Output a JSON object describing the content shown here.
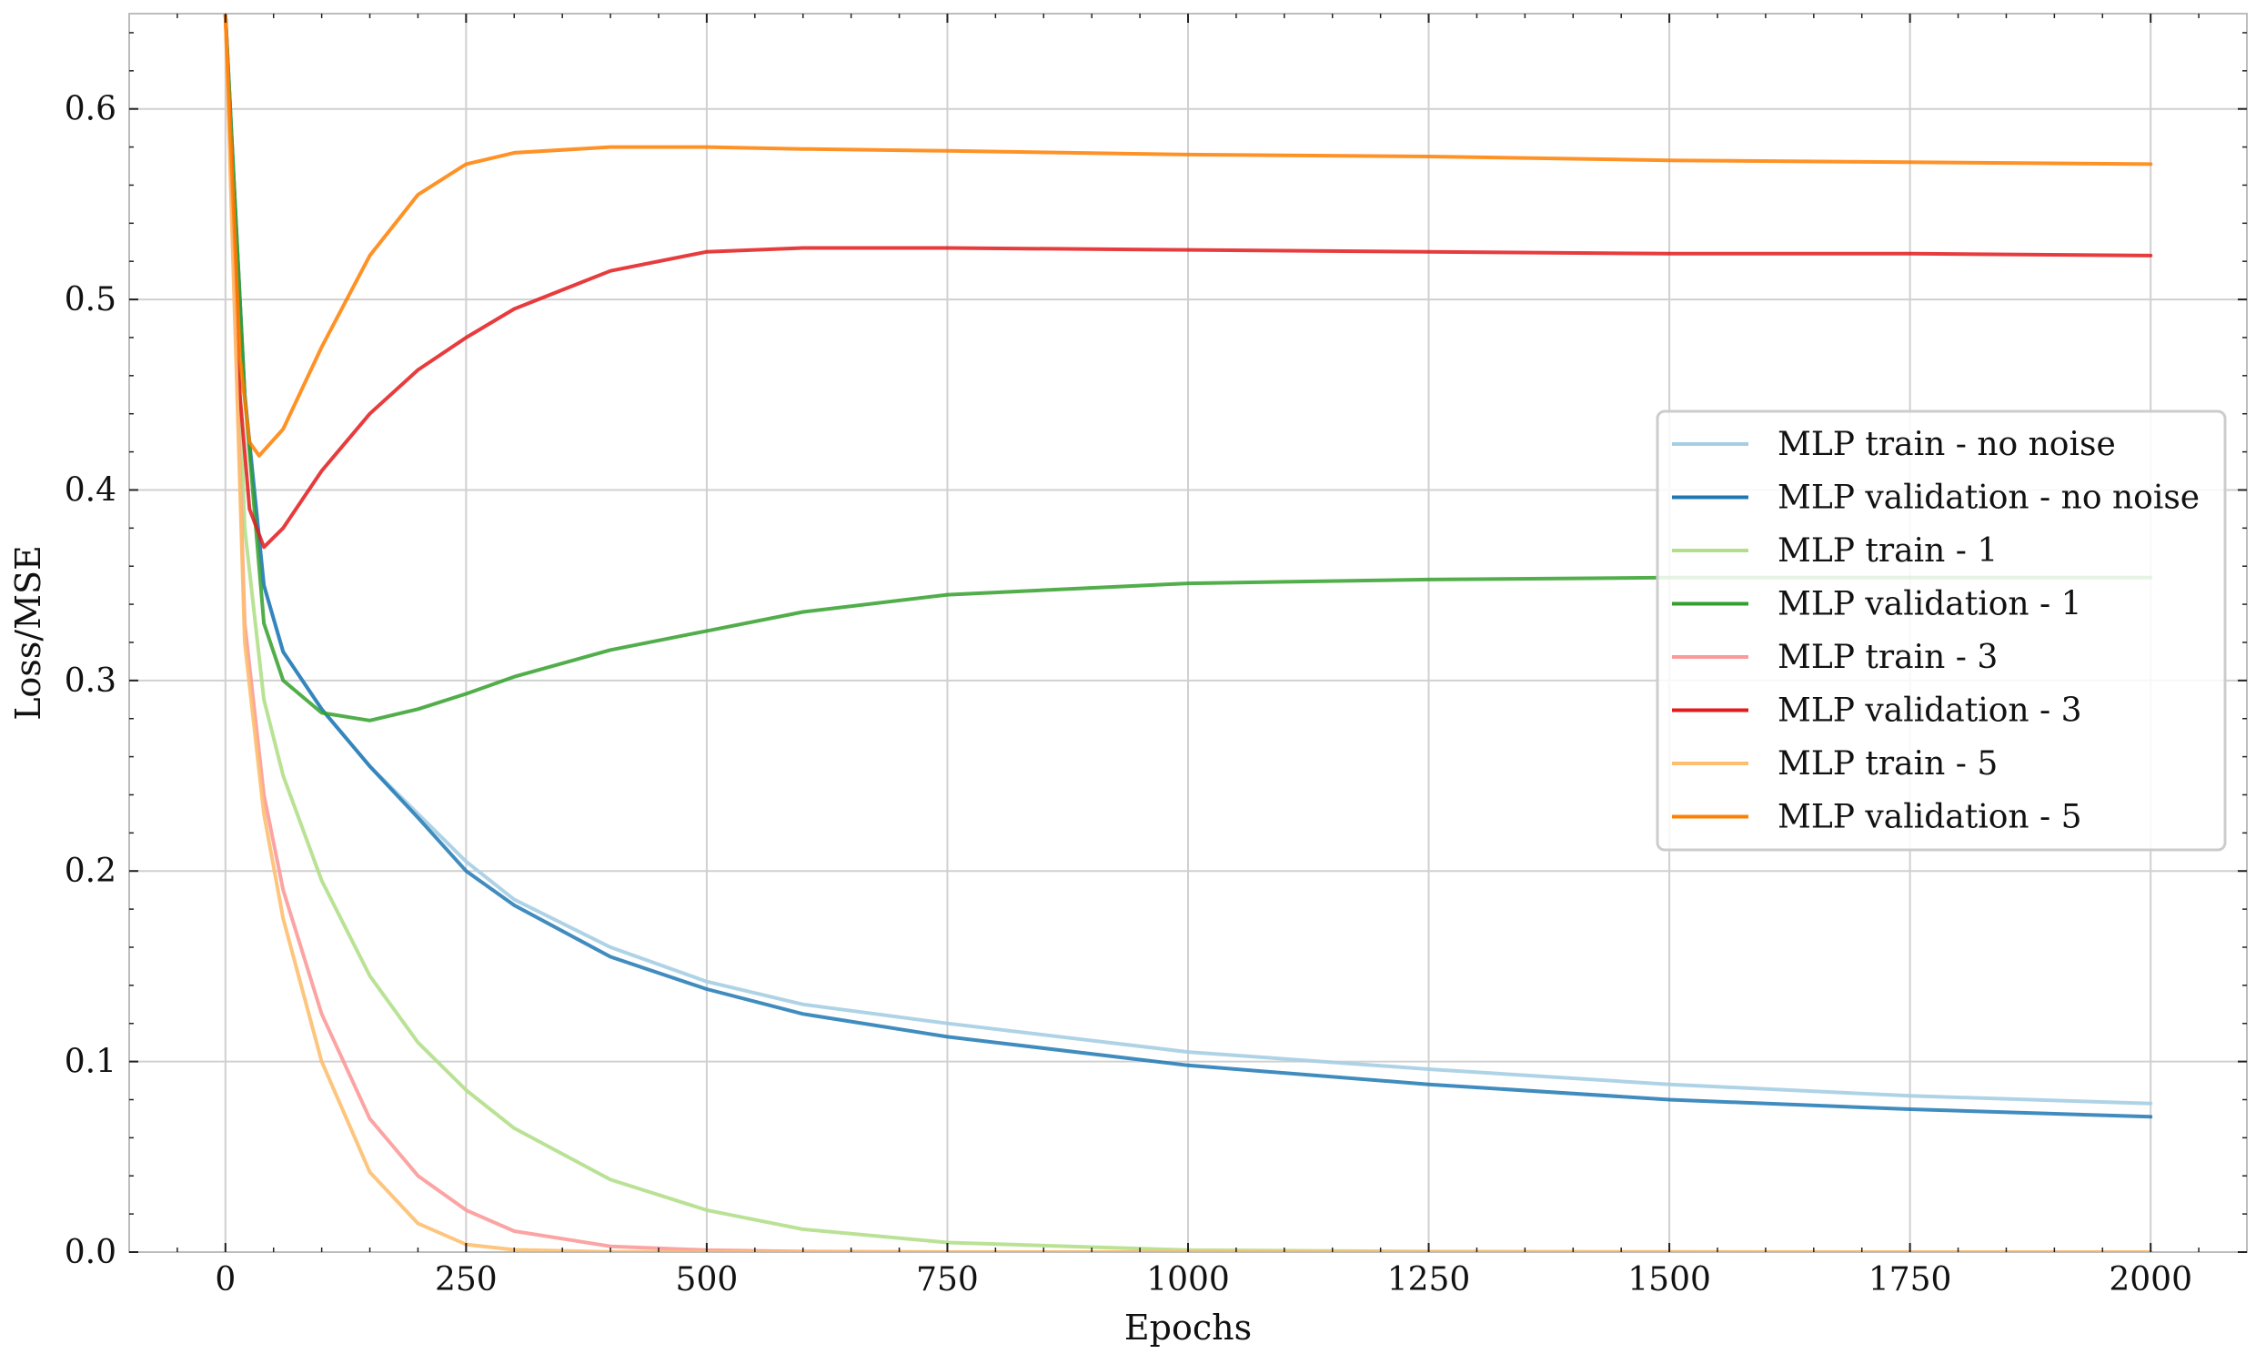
{
  "chart_data": {
    "type": "line",
    "xlabel": "Epochs",
    "ylabel": "Loss/MSE",
    "xlim": [
      -100,
      2100
    ],
    "ylim": [
      0.0,
      0.65
    ],
    "xticks": [
      0,
      250,
      500,
      750,
      1000,
      1250,
      1500,
      1750,
      2000
    ],
    "xtick_labels": [
      "0",
      "250",
      "500",
      "750",
      "1000",
      "1250",
      "1500",
      "1750",
      "2000"
    ],
    "yticks": [
      0.0,
      0.1,
      0.2,
      0.3,
      0.4,
      0.5,
      0.6
    ],
    "ytick_labels": [
      "0.0",
      "0.1",
      "0.2",
      "0.3",
      "0.4",
      "0.5",
      "0.6"
    ],
    "grid": true,
    "legend_position": "center-right",
    "series": [
      {
        "name": "MLP train - no noise",
        "color": "#a6cee3",
        "x": [
          0,
          20,
          40,
          60,
          100,
          150,
          200,
          250,
          300,
          400,
          500,
          600,
          750,
          1000,
          1250,
          1500,
          1750,
          2000
        ],
        "y": [
          0.65,
          0.45,
          0.35,
          0.315,
          0.285,
          0.255,
          0.23,
          0.205,
          0.185,
          0.16,
          0.142,
          0.13,
          0.12,
          0.105,
          0.096,
          0.088,
          0.082,
          0.078
        ]
      },
      {
        "name": "MLP validation - no noise",
        "color": "#1f78b4",
        "x": [
          0,
          20,
          40,
          60,
          100,
          150,
          200,
          250,
          300,
          400,
          500,
          600,
          750,
          1000,
          1250,
          1500,
          1750,
          2000
        ],
        "y": [
          0.65,
          0.45,
          0.35,
          0.315,
          0.285,
          0.255,
          0.228,
          0.2,
          0.182,
          0.155,
          0.138,
          0.125,
          0.113,
          0.098,
          0.088,
          0.08,
          0.075,
          0.071
        ]
      },
      {
        "name": "MLP train - 1",
        "color": "#b2df8a",
        "x": [
          0,
          20,
          40,
          60,
          100,
          150,
          200,
          250,
          300,
          400,
          500,
          600,
          750,
          1000,
          1250,
          1500,
          1750,
          2000
        ],
        "y": [
          0.65,
          0.38,
          0.29,
          0.25,
          0.195,
          0.145,
          0.11,
          0.085,
          0.065,
          0.038,
          0.022,
          0.012,
          0.005,
          0.001,
          0.0003,
          0.0001,
          0.0,
          0.0
        ]
      },
      {
        "name": "MLP validation - 1",
        "color": "#33a02c",
        "x": [
          0,
          20,
          40,
          60,
          100,
          150,
          200,
          250,
          300,
          400,
          500,
          600,
          750,
          1000,
          1250,
          1500,
          1750,
          2000
        ],
        "y": [
          0.65,
          0.45,
          0.33,
          0.3,
          0.283,
          0.279,
          0.285,
          0.293,
          0.302,
          0.316,
          0.326,
          0.336,
          0.345,
          0.351,
          0.353,
          0.354,
          0.354,
          0.354
        ]
      },
      {
        "name": "MLP train - 3",
        "color": "#fb9a99",
        "x": [
          0,
          20,
          40,
          60,
          100,
          150,
          200,
          250,
          300,
          400,
          500,
          600,
          750,
          1000,
          1250,
          1500,
          1750,
          2000
        ],
        "y": [
          0.65,
          0.33,
          0.24,
          0.19,
          0.125,
          0.07,
          0.04,
          0.022,
          0.011,
          0.003,
          0.001,
          0.0003,
          0.0,
          0.0,
          0.0,
          0.0,
          0.0,
          0.0
        ]
      },
      {
        "name": "MLP validation - 3",
        "color": "#e31a1c",
        "x": [
          0,
          15,
          25,
          40,
          60,
          100,
          150,
          200,
          250,
          300,
          400,
          500,
          600,
          750,
          1000,
          1250,
          1500,
          1750,
          2000
        ],
        "y": [
          0.65,
          0.45,
          0.39,
          0.37,
          0.38,
          0.41,
          0.44,
          0.463,
          0.48,
          0.495,
          0.515,
          0.525,
          0.527,
          0.527,
          0.526,
          0.525,
          0.524,
          0.524,
          0.523
        ]
      },
      {
        "name": "MLP train - 5",
        "color": "#fdbf6f",
        "x": [
          0,
          20,
          40,
          60,
          100,
          150,
          200,
          250,
          300,
          400,
          500,
          600,
          750,
          1000,
          1250,
          1500,
          1750,
          2000
        ],
        "y": [
          0.65,
          0.32,
          0.23,
          0.175,
          0.1,
          0.042,
          0.015,
          0.004,
          0.0012,
          0.0001,
          0.0,
          0.0,
          0.0,
          0.0,
          0.0,
          0.0,
          0.0,
          0.0
        ]
      },
      {
        "name": "MLP validation - 5",
        "color": "#ff7f00",
        "x": [
          0,
          15,
          25,
          35,
          60,
          100,
          150,
          200,
          250,
          300,
          400,
          500,
          600,
          750,
          1000,
          1250,
          1500,
          1750,
          2000
        ],
        "y": [
          0.65,
          0.47,
          0.425,
          0.418,
          0.432,
          0.475,
          0.523,
          0.555,
          0.571,
          0.577,
          0.58,
          0.58,
          0.579,
          0.578,
          0.576,
          0.575,
          0.573,
          0.572,
          0.571
        ]
      }
    ]
  }
}
